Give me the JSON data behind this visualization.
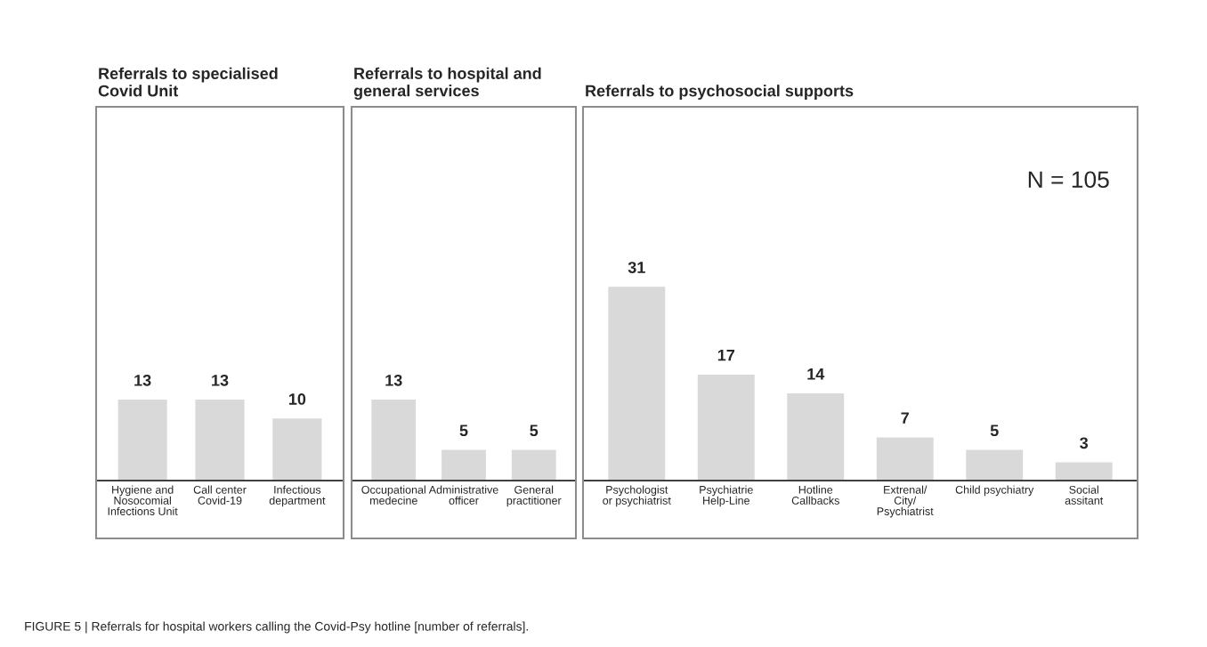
{
  "chart_data": [
    {
      "type": "bar",
      "title": "Referrals to specialised\nCovid Unit",
      "categories": [
        "Hygiene and\nNosocomial\nInfections Unit",
        "Call center\nCovid-19",
        "Infectious\ndepartment"
      ],
      "values": [
        13,
        13,
        10
      ],
      "color": "#d9d9d9",
      "data_labels": true
    },
    {
      "type": "bar",
      "title": "Referrals to hospital and\ngeneral services",
      "categories": [
        "Occupational\nmedecine",
        "Administrative\nofficer",
        "General\npractitioner"
      ],
      "values": [
        13,
        5,
        5
      ],
      "color": "#d9d9d9",
      "data_labels": true
    },
    {
      "type": "bar",
      "title": "Referrals to psychosocial supports",
      "categories": [
        "Psychologist\nor psychiatrist",
        "Psychiatrie\nHelp-Line",
        "Hotline\nCallbacks",
        "Extrenal/\nCity/\nPsychiatrist",
        "Child psychiatry",
        "Social\nassitant"
      ],
      "values": [
        31,
        17,
        14,
        7,
        5,
        3
      ],
      "color": "#d9d9d9",
      "data_labels": true,
      "annotations": [
        "N = 105",
        "FIGURE 5 | Referrals for hospital workers calling the Covid-Psy hotline [number of referrals]."
      ]
    }
  ]
}
